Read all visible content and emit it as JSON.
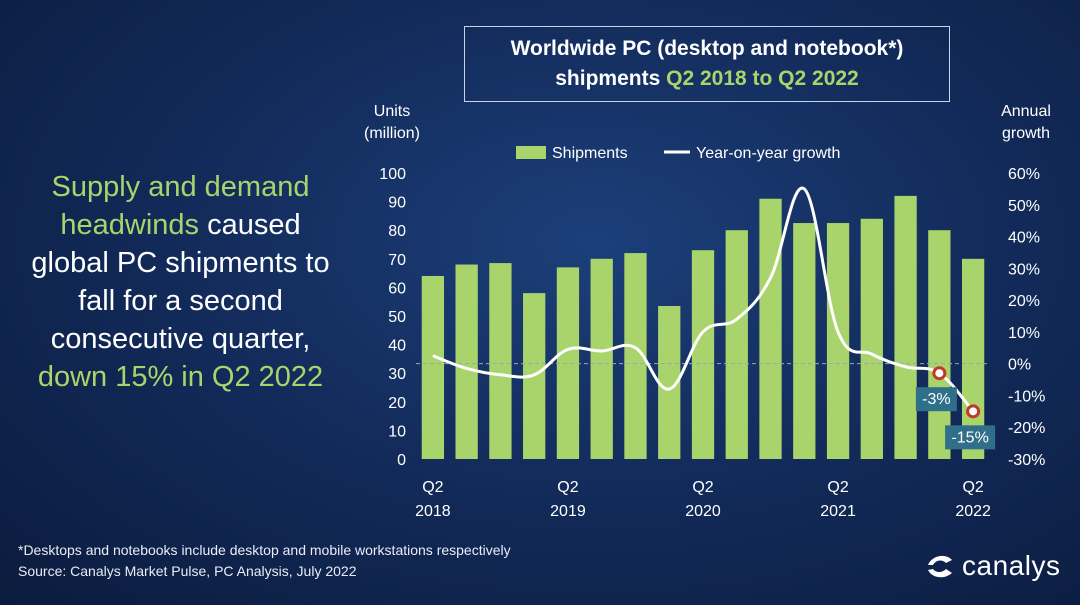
{
  "title": {
    "line1": "Worldwide PC (desktop and notebook*)",
    "line2_prefix": "shipments ",
    "line2_accent": "Q2 2018 to Q2 2022"
  },
  "headline": {
    "part1": "Supply and demand",
    "part2": "headwinds",
    "part3": " caused global PC shipments to fall for a second consecutive quarter, ",
    "part4": "down 15% in Q2 2022"
  },
  "footnote": {
    "line1": "*Desktops and notebooks include desktop and mobile workstations respectively",
    "line2": "Source: Canalys Market Pulse, PC Analysis, July 2022"
  },
  "logo": {
    "text": "canalys",
    "icon": "canalys-logo-icon"
  },
  "colors": {
    "bar": "#a9d46b",
    "line": "#ffffff",
    "marker": "#c0392b",
    "callout": "#2f6f8a"
  },
  "chart_data": {
    "type": "bar",
    "categories": [
      "Q2 2018",
      "Q3 2018",
      "Q4 2018",
      "Q1 2019",
      "Q2 2019",
      "Q3 2019",
      "Q4 2019",
      "Q1 2020",
      "Q2 2020",
      "Q3 2020",
      "Q4 2020",
      "Q1 2021",
      "Q2 2021",
      "Q3 2021",
      "Q4 2021",
      "Q1 2022",
      "Q2 2022"
    ],
    "x_tick_labels": [
      {
        "index": 0,
        "line1": "Q2",
        "line2": "2018"
      },
      {
        "index": 4,
        "line1": "Q2",
        "line2": "2019"
      },
      {
        "index": 8,
        "line1": "Q2",
        "line2": "2020"
      },
      {
        "index": 12,
        "line1": "Q2",
        "line2": "2021"
      },
      {
        "index": 16,
        "line1": "Q2",
        "line2": "2022"
      }
    ],
    "series": [
      {
        "name": "Shipments",
        "axis": "left",
        "type": "bar",
        "values": [
          64,
          68,
          68.5,
          58,
          67,
          70,
          72,
          53.5,
          73,
          80,
          91,
          82.5,
          82.5,
          84,
          92,
          80,
          70
        ]
      },
      {
        "name": "Year-on-year growth",
        "axis": "right",
        "type": "line",
        "values": [
          2.5,
          -1.5,
          -3.5,
          -3.5,
          4.5,
          4,
          5,
          -8,
          10,
          14,
          27,
          55,
          10,
          3,
          -1,
          -3,
          -15
        ]
      }
    ],
    "left_axis": {
      "label_line1": "Units",
      "label_line2": "(million)",
      "min": 0,
      "max": 100,
      "step": 10
    },
    "right_axis": {
      "label_line1": "Annual",
      "label_line2": "growth",
      "min": -30,
      "max": 60,
      "step": 10,
      "unit": "%"
    },
    "callouts": [
      {
        "index": 15,
        "text": "-3%"
      },
      {
        "index": 16,
        "text": "-15%"
      }
    ],
    "zero_growth_line": true,
    "legend_position": "top-center"
  }
}
